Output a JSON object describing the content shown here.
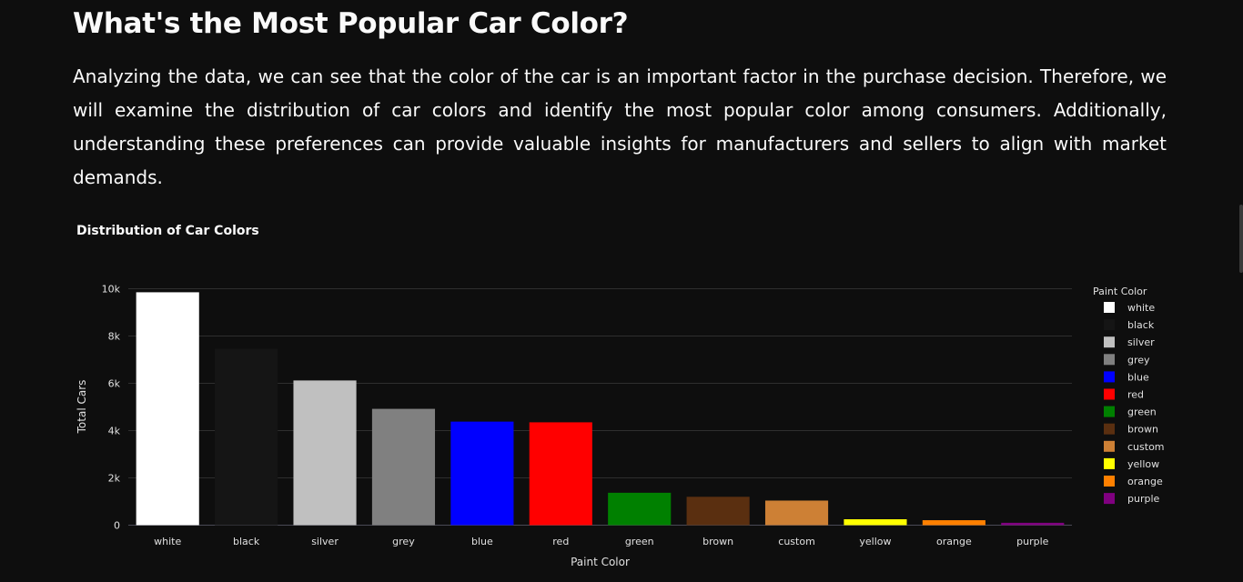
{
  "header": {
    "title": "What's the Most Popular Car Color?",
    "intro": "Analyzing the data, we can see that the color of the car is an important factor in the purchase decision. Therefore, we will examine the distribution of car colors and identify the most popular color among consumers. Additionally, understanding these preferences can provide valuable insights for manufacturers and sellers to align with market demands."
  },
  "chart_data": {
    "type": "bar",
    "title": "Distribution of Car Colors",
    "xlabel": "Paint Color",
    "ylabel": "Total Cars",
    "ylim": [
      0,
      10000
    ],
    "yticks": [
      {
        "v": 0,
        "label": "0"
      },
      {
        "v": 2000,
        "label": "2k"
      },
      {
        "v": 4000,
        "label": "4k"
      },
      {
        "v": 6000,
        "label": "6k"
      },
      {
        "v": 8000,
        "label": "8k"
      },
      {
        "v": 10000,
        "label": "10k"
      }
    ],
    "legend_title": "Paint Color",
    "legend_position": "right",
    "categories": [
      "white",
      "black",
      "silver",
      "grey",
      "blue",
      "red",
      "green",
      "brown",
      "custom",
      "yellow",
      "orange",
      "purple"
    ],
    "values": [
      9850,
      7460,
      6120,
      4920,
      4380,
      4350,
      1370,
      1200,
      1040,
      250,
      210,
      100
    ],
    "colors": [
      "#ffffff",
      "#151515",
      "#c0c0c0",
      "#808080",
      "#0000ff",
      "#ff0000",
      "#008000",
      "#5a2f10",
      "#cd8035",
      "#ffff00",
      "#ff8000",
      "#800080"
    ]
  }
}
